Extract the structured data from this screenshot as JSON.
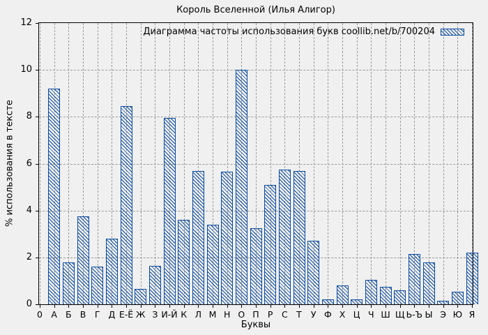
{
  "figure": {
    "background": "#f0f0f0",
    "frame_color": "#000000",
    "grid_color": "#9a9a9a",
    "bar_color": "#0b4a9e",
    "bar_fill": "diagonal-hatch"
  },
  "chart_data": {
    "type": "bar",
    "title": "Король Вселенной (Илья Алигор)",
    "legend": {
      "label": "Диаграмма частоты использования букв coollib.net/b/700204",
      "position": "top-right-inside"
    },
    "xlabel": "Буквы",
    "ylabel": "% использования в тексте",
    "ylim": [
      0,
      12
    ],
    "yticks": [
      0,
      2,
      4,
      6,
      8,
      10,
      12
    ],
    "grid": true,
    "categories": [
      "0",
      "А",
      "Б",
      "В",
      "Г",
      "Д",
      "Е-Ё",
      "Ж",
      "З",
      "И-Й",
      "К",
      "Л",
      "М",
      "Н",
      "О",
      "П",
      "Р",
      "С",
      "Т",
      "У",
      "Ф",
      "Х",
      "Ц",
      "Ч",
      "Ш",
      "Щ",
      "Ь-Ъ",
      "Ы",
      "Э",
      "Ю",
      "Я"
    ],
    "values": [
      0,
      9.2,
      1.8,
      3.75,
      1.6,
      2.8,
      8.45,
      0.65,
      1.65,
      7.95,
      3.6,
      5.7,
      3.4,
      5.65,
      10.0,
      3.25,
      5.1,
      5.75,
      5.7,
      2.7,
      0.2,
      0.8,
      0.2,
      1.05,
      0.75,
      0.6,
      2.15,
      1.8,
      0.15,
      0.55,
      2.2
    ]
  }
}
